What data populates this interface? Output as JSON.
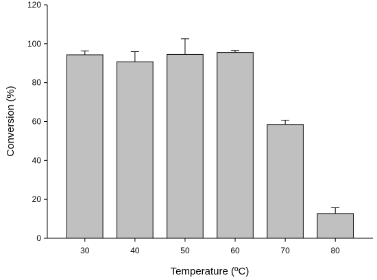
{
  "chart_data": {
    "type": "bar",
    "categories": [
      "30",
      "40",
      "50",
      "60",
      "70",
      "80"
    ],
    "values": [
      94.3,
      90.7,
      94.5,
      95.5,
      58.5,
      12.7
    ],
    "errors": [
      2.0,
      5.2,
      8.0,
      1.0,
      2.2,
      3.0
    ],
    "xlabel": "Temperature (ºC)",
    "ylabel": "Conversion (%)",
    "ylim": [
      0,
      120
    ],
    "yticks": [
      "0",
      "20",
      "40",
      "60",
      "80",
      "100",
      "120"
    ],
    "bar_color": "#c0c0c0",
    "grid": false
  }
}
